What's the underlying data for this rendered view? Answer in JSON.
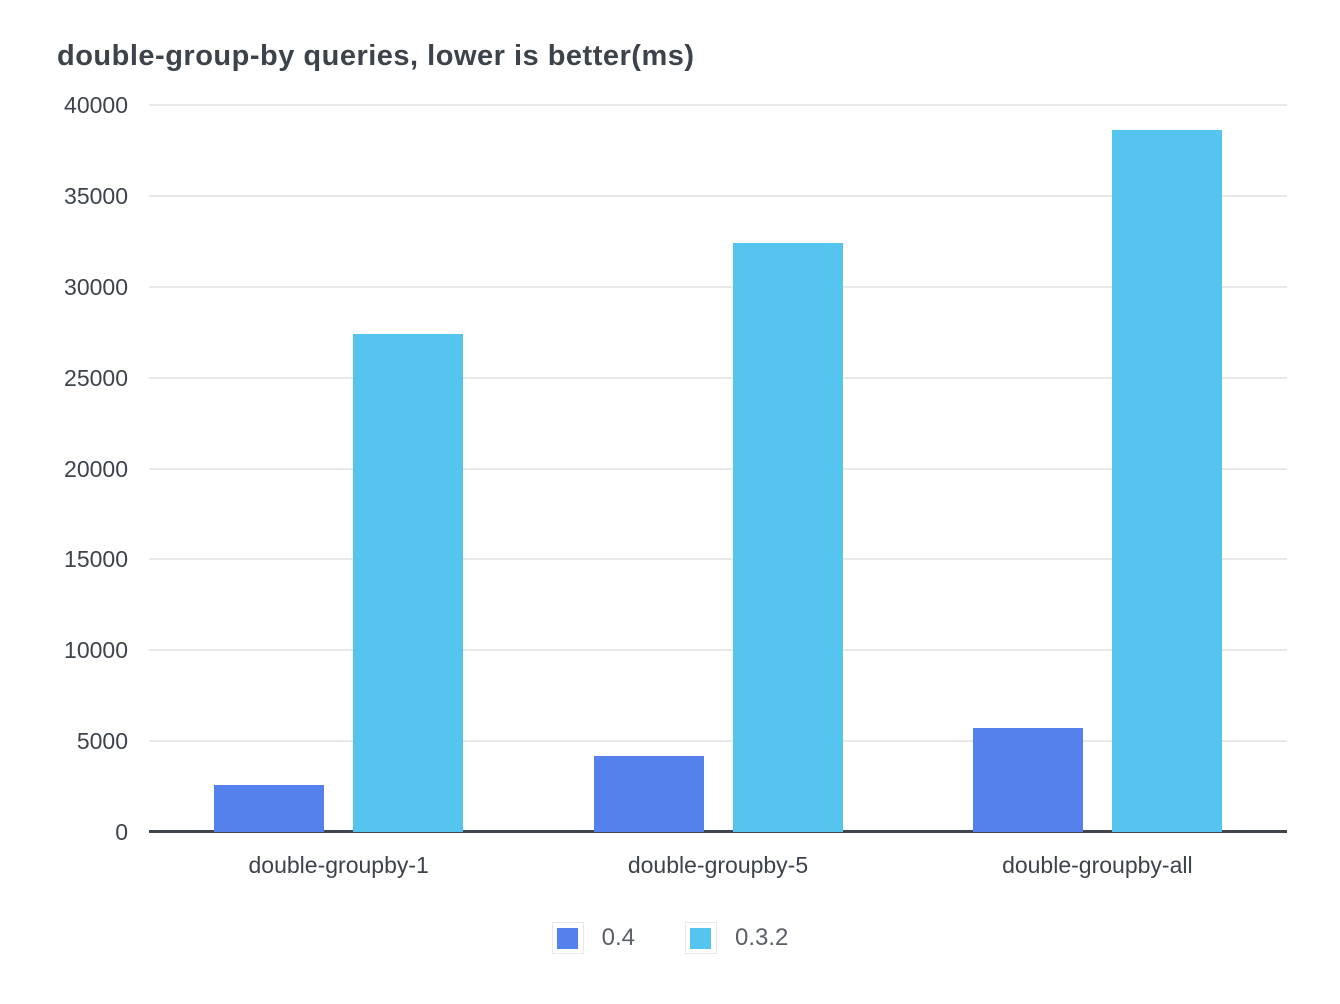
{
  "chart_data": {
    "type": "bar",
    "title": "double-group-by queries, lower is better(ms)",
    "categories": [
      "double-groupby-1",
      "double-groupby-5",
      "double-groupby-all"
    ],
    "series": [
      {
        "name": "0.4",
        "color": "#5581ec",
        "values": [
          2600,
          4200,
          5700
        ]
      },
      {
        "name": "0.3.2",
        "color": "#55c5ef",
        "values": [
          27400,
          32400,
          38600
        ]
      }
    ],
    "xlabel": "",
    "ylabel": "",
    "ylim": [
      0,
      40000
    ],
    "ytick_step": 5000,
    "yticks": [
      0,
      5000,
      10000,
      15000,
      20000,
      25000,
      30000,
      35000,
      40000
    ],
    "grid": "horizontal",
    "legend_position": "bottom",
    "colors": {
      "grid_line": "#e6e8ea",
      "axis_line": "#41464c",
      "title_text": "#3d434b",
      "tick_text": "#3e444c",
      "legend_text": "#5a6068"
    }
  }
}
